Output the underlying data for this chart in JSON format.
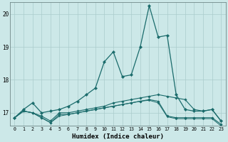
{
  "xlabel": "Humidex (Indice chaleur)",
  "background_color": "#cce8e8",
  "grid_color": "#aacccc",
  "line_color": "#1a6b6b",
  "xlim": [
    -0.5,
    23.5
  ],
  "ylim": [
    16.6,
    20.35
  ],
  "yticks": [
    17,
    18,
    19,
    20
  ],
  "xticks": [
    0,
    1,
    2,
    3,
    4,
    5,
    6,
    7,
    8,
    9,
    10,
    11,
    12,
    13,
    14,
    15,
    16,
    17,
    18,
    19,
    20,
    21,
    22,
    23
  ],
  "line_main": {
    "x": [
      0,
      1,
      2,
      3,
      4,
      5,
      6,
      7,
      8,
      9,
      10,
      11,
      12,
      13,
      14,
      15,
      16,
      17,
      18,
      19,
      20,
      21,
      22,
      23
    ],
    "y": [
      16.85,
      17.1,
      17.3,
      17.0,
      17.05,
      17.1,
      17.2,
      17.35,
      17.55,
      17.75,
      18.55,
      18.85,
      18.1,
      18.15,
      19.0,
      20.25,
      19.3,
      19.35,
      17.55,
      17.1,
      17.05,
      17.05,
      17.1,
      16.75
    ]
  },
  "line2": {
    "x": [
      0,
      1,
      2,
      3,
      4,
      5,
      6,
      7,
      8,
      9,
      10,
      11,
      12,
      13,
      14,
      15,
      16,
      17,
      18,
      19,
      20,
      21,
      22,
      23
    ],
    "y": [
      16.85,
      17.05,
      17.0,
      16.9,
      16.75,
      17.0,
      17.0,
      17.05,
      17.1,
      17.15,
      17.2,
      17.3,
      17.35,
      17.4,
      17.45,
      17.5,
      17.55,
      17.5,
      17.45,
      17.4,
      17.1,
      17.05,
      17.1,
      16.75
    ]
  },
  "line3": {
    "x": [
      0,
      1,
      2,
      3,
      4,
      5,
      6,
      7,
      8,
      9,
      10,
      11,
      12,
      13,
      14,
      15,
      16,
      17,
      18,
      19,
      20,
      21,
      22,
      23
    ],
    "y": [
      16.85,
      17.05,
      17.0,
      16.85,
      16.7,
      16.95,
      16.95,
      17.0,
      17.05,
      17.1,
      17.15,
      17.2,
      17.25,
      17.3,
      17.35,
      17.4,
      17.35,
      16.9,
      16.85,
      16.85,
      16.85,
      16.85,
      16.85,
      16.65
    ]
  },
  "line4": {
    "x": [
      0,
      1,
      2,
      3,
      4,
      5,
      6,
      7,
      8,
      9,
      10,
      11,
      12,
      13,
      14,
      15,
      16,
      17,
      18,
      19,
      20,
      21,
      22,
      23
    ],
    "y": [
      16.85,
      17.05,
      17.0,
      16.85,
      16.7,
      16.9,
      16.95,
      17.0,
      17.05,
      17.1,
      17.15,
      17.2,
      17.25,
      17.3,
      17.35,
      17.38,
      17.3,
      16.88,
      16.82,
      16.82,
      16.82,
      16.82,
      16.82,
      16.6
    ]
  }
}
